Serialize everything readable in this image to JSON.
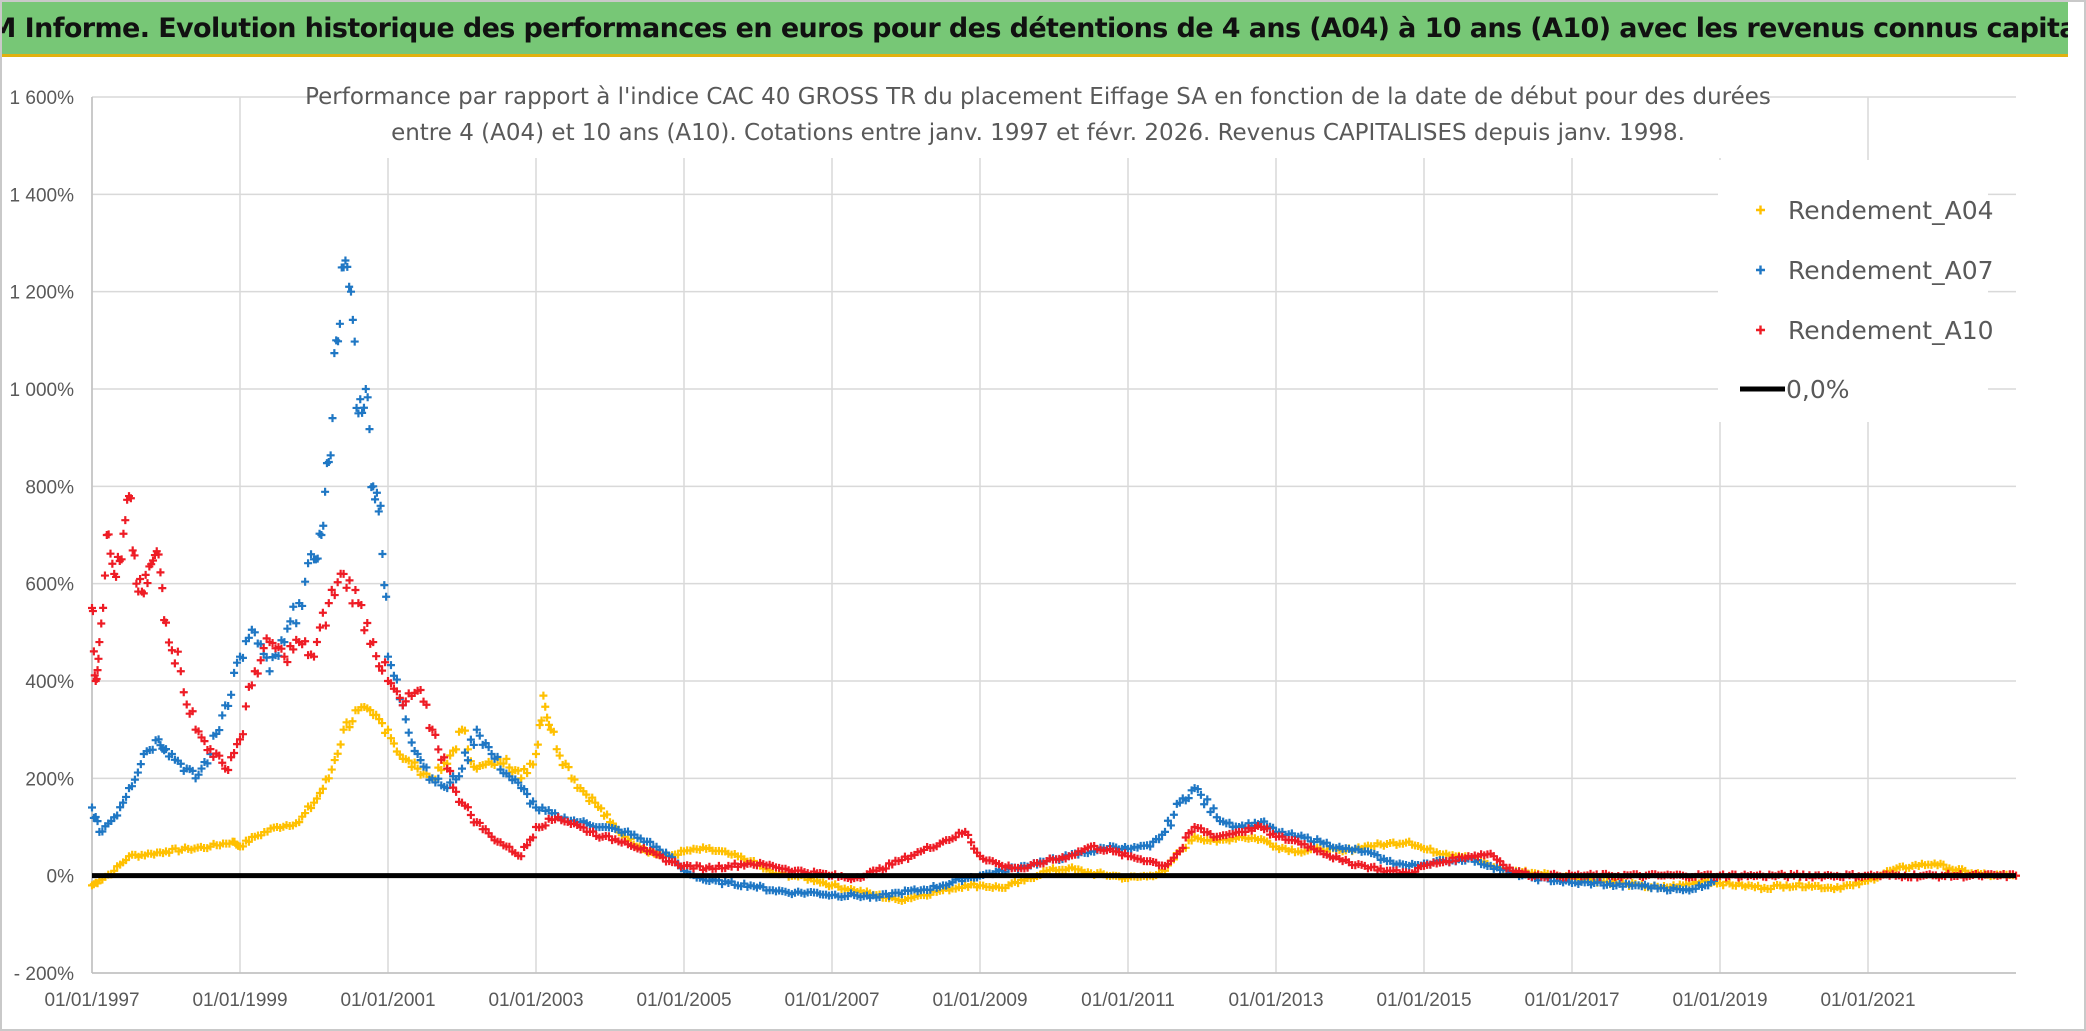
{
  "banner": {
    "title": "ADAM Informe. Evolution historique des performances en euros pour des détentions de 4 ans (A04) à 10 ans (A10) avec les revenus connus capitalisés"
  },
  "colors": {
    "A04": "#ffc000",
    "A07": "#1f77c4",
    "A10": "#ee1c25",
    "zero": "#000000",
    "grid": "#d9d9d9",
    "banner": "#77c776",
    "banner_border": "#e1b10f"
  },
  "chart_data": {
    "type": "scatter",
    "title_lines": [
      "Performance  par rapport à l'indice CAC 40 GROSS TR  du placement Eiffage SA en fonction de la date de début pour des durées",
      "entre 4 (A04) et 10 ans (A10). Cotations entre janv. 1997 et févr. 2026. Revenus CAPITALISES depuis janv. 1998."
    ],
    "xlim": [
      1997.0,
      2023.0
    ],
    "x_ticks": [
      1997,
      1999,
      2001,
      2003,
      2005,
      2007,
      2009,
      2011,
      2013,
      2015,
      2017,
      2019,
      2021
    ],
    "x_tick_labels": [
      "01/01/1997",
      "01/01/1999",
      "01/01/2001",
      "01/01/2003",
      "01/01/2005",
      "01/01/2007",
      "01/01/2009",
      "01/01/2011",
      "01/01/2013",
      "01/01/2015",
      "01/01/2017",
      "01/01/2019",
      "01/01/2021"
    ],
    "ylim": [
      -200,
      1600
    ],
    "y_ticks": [
      -200,
      0,
      200,
      400,
      600,
      800,
      1000,
      1200,
      1400,
      1600
    ],
    "y_tick_labels": [
      "- 200%",
      "0%",
      "200%",
      "400%",
      "600%",
      "800%",
      "1 000%",
      "1 200%",
      "1 400%",
      "1 600%"
    ],
    "legend": {
      "position": "top-right",
      "entries": [
        "Rendement_A04",
        "Rendement_A07",
        "Rendement_A10",
        "0,0%"
      ]
    },
    "series": [
      {
        "name": "Rendement_A04",
        "x": [
          1997.0,
          1997.1,
          1997.3,
          1997.5,
          1997.8,
          1998.0,
          1998.3,
          1998.6,
          1998.9,
          1999.0,
          1999.2,
          1999.5,
          1999.8,
          2000.0,
          2000.2,
          2000.4,
          2000.6,
          2000.8,
          2001.0,
          2001.2,
          2001.4,
          2001.6,
          2001.8,
          2002.0,
          2002.2,
          2002.4,
          2002.6,
          2002.8,
          2003.0,
          2003.1,
          2003.2,
          2003.4,
          2003.6,
          2003.8,
          2004.0,
          2004.2,
          2004.4,
          2004.6,
          2004.8,
          2005.0,
          2005.3,
          2005.6,
          2005.9,
          2006.2,
          2006.5,
          2006.8,
          2007.0,
          2007.3,
          2007.6,
          2007.9,
          2008.2,
          2008.5,
          2008.8,
          2009.0,
          2009.3,
          2009.6,
          2009.9,
          2010.2,
          2010.5,
          2010.8,
          2011.0,
          2011.3,
          2011.5,
          2011.7,
          2011.9,
          2012.2,
          2012.5,
          2012.8,
          2013.0,
          2013.3,
          2013.6,
          2013.9,
          2014.2,
          2014.5,
          2014.8,
          2015.0,
          2015.3,
          2015.6,
          2015.9,
          2016.2,
          2016.5,
          2016.8,
          2017.0,
          2017.3,
          2017.6,
          2017.9,
          2018.2,
          2018.5,
          2018.8,
          2019.0,
          2019.3,
          2019.6,
          2019.9,
          2020.2,
          2020.5,
          2020.8,
          2021.0,
          2021.3,
          2021.6,
          2021.9,
          2022.1,
          2022.4,
          2022.7,
          2023.0
        ],
        "values": [
          -20,
          -10,
          10,
          40,
          45,
          50,
          55,
          60,
          70,
          60,
          80,
          100,
          110,
          150,
          200,
          300,
          340,
          330,
          300,
          240,
          220,
          200,
          230,
          300,
          220,
          230,
          240,
          200,
          250,
          370,
          300,
          230,
          180,
          150,
          110,
          80,
          60,
          45,
          40,
          50,
          55,
          45,
          30,
          5,
          0,
          -10,
          -20,
          -30,
          -40,
          -50,
          -40,
          -30,
          -20,
          -20,
          -25,
          -10,
          10,
          15,
          5,
          0,
          -5,
          0,
          10,
          50,
          80,
          70,
          80,
          75,
          60,
          50,
          55,
          50,
          60,
          65,
          70,
          55,
          45,
          40,
          20,
          10,
          5,
          0,
          -5,
          -10,
          -15,
          -20,
          -25,
          -20,
          -10,
          -15,
          -20,
          -25,
          -20,
          -20,
          -25,
          -20,
          -10,
          10,
          20,
          25,
          15,
          5,
          0,
          0
        ]
      },
      {
        "name": "Rendement_A07",
        "x": [
          1997.0,
          1997.1,
          1997.3,
          1997.5,
          1997.7,
          1997.9,
          1998.0,
          1998.2,
          1998.4,
          1998.6,
          1998.8,
          1999.0,
          1999.2,
          1999.4,
          1999.6,
          1999.8,
          2000.0,
          2000.1,
          2000.2,
          2000.3,
          2000.4,
          2000.5,
          2000.6,
          2000.7,
          2000.8,
          2000.9,
          2001.0,
          2001.2,
          2001.4,
          2001.6,
          2001.8,
          2002.0,
          2002.2,
          2002.4,
          2002.6,
          2002.8,
          2003.0,
          2003.3,
          2003.6,
          2003.9,
          2004.2,
          2004.5,
          2004.8,
          2005.0,
          2005.3,
          2005.6,
          2005.9,
          2006.2,
          2006.5,
          2006.8,
          2007.0,
          2007.3,
          2007.6,
          2007.9,
          2008.2,
          2008.5,
          2008.8,
          2009.0,
          2009.3,
          2009.6,
          2009.9,
          2010.2,
          2010.5,
          2010.8,
          2011.0,
          2011.3,
          2011.5,
          2011.7,
          2011.9,
          2012.2,
          2012.5,
          2012.8,
          2013.0,
          2013.3,
          2013.6,
          2013.9,
          2014.2,
          2014.5,
          2014.8,
          2015.0,
          2015.3,
          2015.6,
          2015.9,
          2016.2,
          2016.5,
          2016.8,
          2017.0,
          2017.3,
          2017.6,
          2017.9,
          2018.2,
          2018.5,
          2018.8,
          2019.0
        ],
        "values": [
          140,
          90,
          120,
          180,
          250,
          280,
          260,
          230,
          200,
          250,
          350,
          450,
          500,
          420,
          480,
          560,
          650,
          700,
          850,
          1100,
          1250,
          1200,
          950,
          1000,
          800,
          760,
          450,
          350,
          250,
          200,
          180,
          220,
          300,
          250,
          210,
          180,
          140,
          120,
          110,
          100,
          90,
          70,
          40,
          10,
          -10,
          -15,
          -20,
          -30,
          -35,
          -35,
          -40,
          -40,
          -45,
          -35,
          -30,
          -20,
          -5,
          0,
          10,
          20,
          30,
          40,
          50,
          60,
          55,
          60,
          90,
          150,
          180,
          120,
          100,
          110,
          90,
          80,
          70,
          55,
          50,
          30,
          20,
          25,
          30,
          35,
          20,
          5,
          -5,
          -10,
          -15,
          -15,
          -20,
          -20,
          -25,
          -30,
          -20,
          0
        ]
      },
      {
        "name": "Rendement_A10",
        "x": [
          1997.0,
          1997.05,
          1997.1,
          1997.2,
          1997.3,
          1997.4,
          1997.5,
          1997.6,
          1997.7,
          1997.8,
          1997.9,
          1998.0,
          1998.2,
          1998.4,
          1998.6,
          1998.8,
          1999.0,
          1999.2,
          1999.4,
          1999.6,
          1999.8,
          2000.0,
          2000.2,
          2000.4,
          2000.6,
          2000.8,
          2001.0,
          2001.2,
          2001.4,
          2001.6,
          2001.8,
          2002.0,
          2002.2,
          2002.4,
          2002.6,
          2002.8,
          2003.0,
          2003.3,
          2003.6,
          2003.9,
          2004.2,
          2004.5,
          2004.8,
          2005.0,
          2005.3,
          2005.6,
          2005.9,
          2006.2,
          2006.5,
          2006.8,
          2007.0,
          2007.3,
          2007.6,
          2007.9,
          2008.2,
          2008.5,
          2008.8,
          2009.0,
          2009.3,
          2009.6,
          2009.9,
          2010.2,
          2010.5,
          2010.8,
          2011.0,
          2011.3,
          2011.5,
          2011.7,
          2011.9,
          2012.2,
          2012.5,
          2012.8,
          2013.0,
          2013.3,
          2013.6,
          2013.9,
          2014.2,
          2014.5,
          2014.8,
          2015.0,
          2015.3,
          2015.6,
          2015.9,
          2016.2,
          2016.5,
          2016.8,
          2017.0,
          2017.5,
          2018.0,
          2018.5,
          2019.0,
          2019.5,
          2020.0,
          2020.5,
          2021.0,
          2021.5,
          2022.0,
          2022.5,
          2023.0
        ],
        "values": [
          550,
          400,
          480,
          700,
          620,
          650,
          780,
          600,
          580,
          640,
          660,
          520,
          420,
          300,
          260,
          220,
          280,
          420,
          480,
          450,
          480,
          450,
          560,
          620,
          560,
          480,
          400,
          350,
          380,
          300,
          220,
          150,
          110,
          80,
          60,
          40,
          100,
          120,
          100,
          80,
          70,
          50,
          30,
          20,
          15,
          20,
          25,
          20,
          10,
          5,
          0,
          -5,
          10,
          30,
          50,
          70,
          90,
          40,
          20,
          15,
          30,
          40,
          60,
          50,
          40,
          30,
          20,
          50,
          100,
          80,
          90,
          100,
          80,
          70,
          50,
          30,
          20,
          10,
          5,
          20,
          30,
          40,
          45,
          10,
          0,
          0,
          0,
          0,
          0,
          0,
          0,
          0,
          0,
          0,
          0,
          0,
          0,
          0,
          0
        ]
      }
    ],
    "reference_line": {
      "name": "0,0%",
      "y": 0
    }
  }
}
